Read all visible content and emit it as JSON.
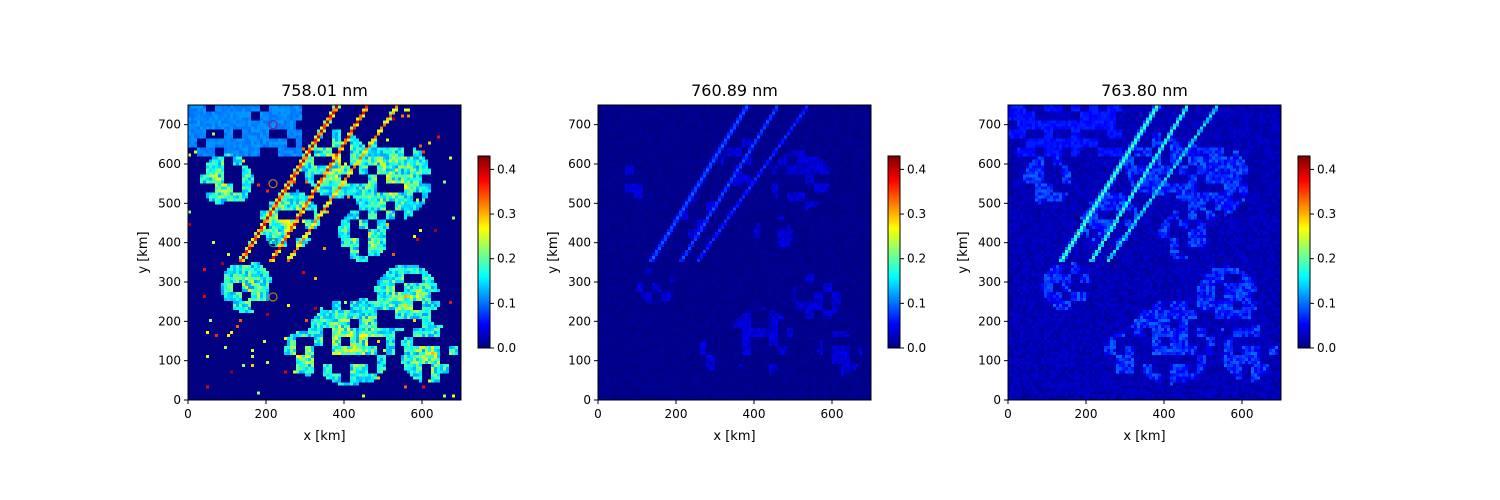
{
  "chart_data": [
    {
      "type": "heatmap",
      "title": "758.01 nm",
      "xlabel": "x [km]",
      "ylabel": "y [km]",
      "xlim": [
        0,
        700
      ],
      "ylim": [
        0,
        750
      ],
      "x_ticks": [
        0,
        200,
        400,
        600
      ],
      "y_ticks": [
        0,
        100,
        200,
        300,
        400,
        500,
        600,
        700
      ],
      "colormap": "jet",
      "colorbar": {
        "range": [
          0.0,
          0.43
        ],
        "ticks": [
          "0.0",
          "0.1",
          "0.2",
          "0.3",
          "0.4"
        ]
      },
      "field_description": "cloud-like retrieval field, high values along diagonal streaks, large uniform patches ~0.1 in upper left",
      "markers": [
        {
          "x": 218,
          "y": 700,
          "color": "#8b1a8b"
        },
        {
          "x": 218,
          "y": 550,
          "color": "#b8860b"
        },
        {
          "x": 218,
          "y": 400,
          "color": "#2e8b57"
        },
        {
          "x": 218,
          "y": 262,
          "color": "#b8860b"
        }
      ]
    },
    {
      "type": "heatmap",
      "title": "760.89 nm",
      "xlabel": "x [km]",
      "ylabel": "y [km]",
      "xlim": [
        0,
        700
      ],
      "ylim": [
        0,
        750
      ],
      "x_ticks": [
        0,
        200,
        400,
        600
      ],
      "y_ticks": [
        0,
        100,
        200,
        300,
        400,
        500,
        600,
        700
      ],
      "colormap": "jet",
      "colorbar": {
        "range": [
          0.0,
          0.43
        ],
        "ticks": [
          "0.0",
          "0.1",
          "0.2",
          "0.3",
          "0.4"
        ]
      },
      "field_description": "mostly near zero, faint streaks up to ~0.1"
    },
    {
      "type": "heatmap",
      "title": "763.80 nm",
      "xlabel": "x [km]",
      "ylabel": "y [km]",
      "xlim": [
        0,
        700
      ],
      "ylim": [
        0,
        750
      ],
      "x_ticks": [
        0,
        200,
        400,
        600
      ],
      "y_ticks": [
        0,
        100,
        200,
        300,
        400,
        500,
        600,
        700
      ],
      "colormap": "jet",
      "colorbar": {
        "range": [
          0.0,
          0.43
        ],
        "ticks": [
          "0.0",
          "0.1",
          "0.2",
          "0.3",
          "0.4"
        ]
      },
      "field_description": "low background with streaks up to ~0.2"
    }
  ]
}
